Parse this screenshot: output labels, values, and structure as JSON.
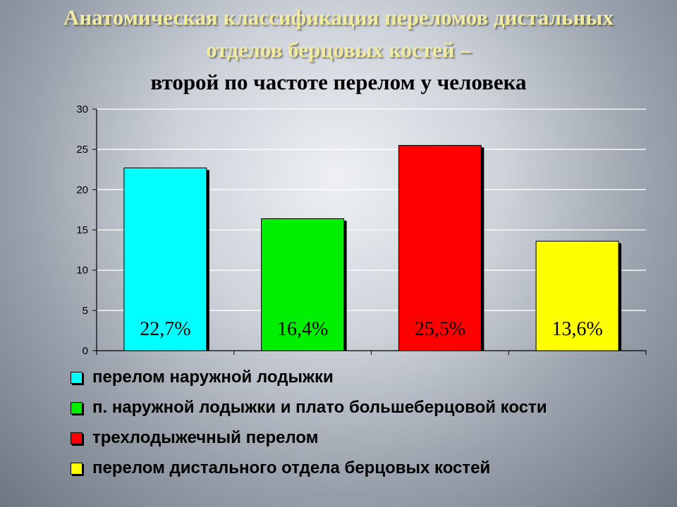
{
  "title": {
    "line1": "Анатомическая классификация переломов дистальных",
    "line2": "отделов берцовых костей –",
    "line3": "второй по частоте перелом у человека",
    "accent_color": "#f2eb9e",
    "dark_color": "#000000"
  },
  "chart_data": {
    "type": "bar",
    "categories": [
      "перелом наружной лодыжки",
      "п. наружной лодыжки и плато большеберцовой кости",
      "трехлодыжечный перелом",
      "перелом дистального отдела берцовых костей"
    ],
    "values": [
      22.7,
      16.4,
      25.5,
      13.6
    ],
    "data_labels": [
      "22,7%",
      "16,4%",
      "25,5%",
      "13,6%"
    ],
    "colors": [
      "#00ffff",
      "#00ee00",
      "#ff0000",
      "#ffff00"
    ],
    "y_ticks": [
      "0",
      "5",
      "10",
      "15",
      "20",
      "25",
      "30"
    ],
    "ylim": [
      0,
      30
    ],
    "grid": true,
    "legend_position": "bottom"
  }
}
